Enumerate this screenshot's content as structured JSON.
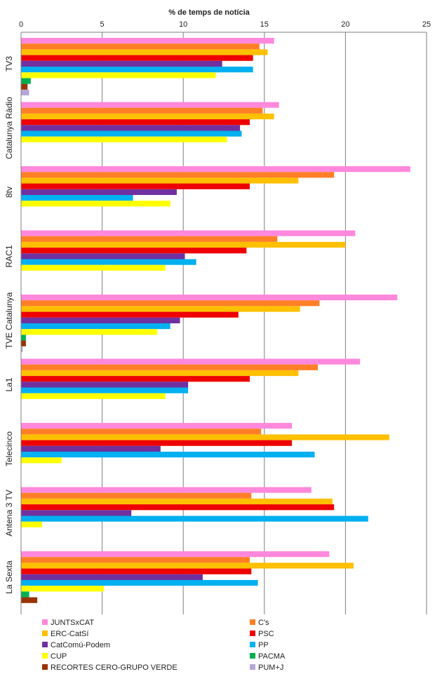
{
  "chart_data": {
    "type": "bar",
    "orientation": "horizontal",
    "title": "% de temps de notícia",
    "xlim": [
      0,
      25
    ],
    "xticks": [
      0,
      5,
      10,
      15,
      20,
      25
    ],
    "grid": true,
    "legend_position": "bottom",
    "categories": [
      "TV3",
      "Catalunya Ràdio",
      "8tv",
      "RAC1",
      "TVE Catalunya",
      "La1",
      "Telecinco",
      "Antena 3 TV",
      "La Sexta"
    ],
    "series": [
      {
        "name": "JUNTSxCAT",
        "color": "#ff88dd",
        "values": [
          15.6,
          15.9,
          24.0,
          20.6,
          23.2,
          20.9,
          16.7,
          17.9,
          19.0
        ]
      },
      {
        "name": "C's",
        "color": "#ff7f27",
        "values": [
          14.7,
          14.9,
          19.3,
          15.8,
          18.4,
          18.3,
          14.8,
          14.2,
          14.1
        ]
      },
      {
        "name": "ERC-CatSí",
        "color": "#ffc000",
        "values": [
          15.2,
          15.6,
          17.1,
          20.0,
          17.2,
          17.1,
          22.7,
          19.2,
          20.5
        ]
      },
      {
        "name": "PSC",
        "color": "#ee0000",
        "values": [
          14.3,
          14.1,
          14.1,
          13.9,
          13.4,
          14.1,
          16.7,
          19.3,
          14.2
        ]
      },
      {
        "name": "CatComú-Podem",
        "color": "#7030a0",
        "values": [
          12.4,
          13.5,
          9.6,
          10.1,
          9.8,
          10.3,
          8.6,
          6.8,
          11.2
        ]
      },
      {
        "name": "PP",
        "color": "#00b0f0",
        "values": [
          14.3,
          13.6,
          6.9,
          10.8,
          9.2,
          10.3,
          18.1,
          21.4,
          14.6
        ]
      },
      {
        "name": "CUP",
        "color": "#ffff00",
        "values": [
          12.0,
          12.7,
          9.2,
          8.9,
          8.4,
          8.9,
          2.5,
          1.3,
          5.1
        ]
      },
      {
        "name": "PACMA",
        "color": "#00b050",
        "values": [
          0.6,
          0.0,
          0.0,
          0.0,
          0.3,
          0.0,
          0.0,
          0.0,
          0.5
        ]
      },
      {
        "name": "RECORTES CERO-GRUPO VERDE",
        "color": "#993300",
        "values": [
          0.4,
          0.0,
          0.0,
          0.0,
          0.3,
          0.0,
          0.0,
          0.0,
          1.0
        ]
      },
      {
        "name": "PUM+J",
        "color": "#b4a7d6",
        "values": [
          0.5,
          0.0,
          0.0,
          0.0,
          0.1,
          0.0,
          0.0,
          0.0,
          0.0
        ]
      }
    ]
  }
}
